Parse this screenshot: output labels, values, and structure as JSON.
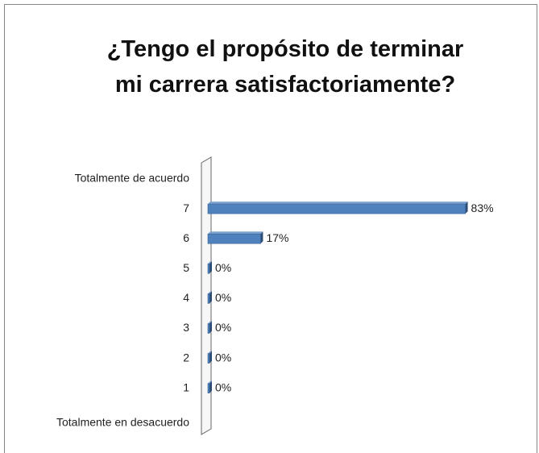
{
  "chart_data": {
    "type": "bar",
    "orientation": "horizontal",
    "title": "¿Tengo el propósito de terminar mi carrera satisfactoriamente?",
    "categories": [
      "Totalmente de acuerdo",
      "7",
      "6",
      "5",
      "4",
      "3",
      "2",
      "1",
      "Totalmente en desacuerdo"
    ],
    "values": [
      null,
      83,
      17,
      0,
      0,
      0,
      0,
      0,
      null
    ],
    "value_labels": [
      null,
      "83%",
      "17%",
      "0%",
      "0%",
      "0%",
      "0%",
      "0%",
      null
    ],
    "color": "#4f81bd",
    "xlim": [
      0,
      100
    ]
  }
}
